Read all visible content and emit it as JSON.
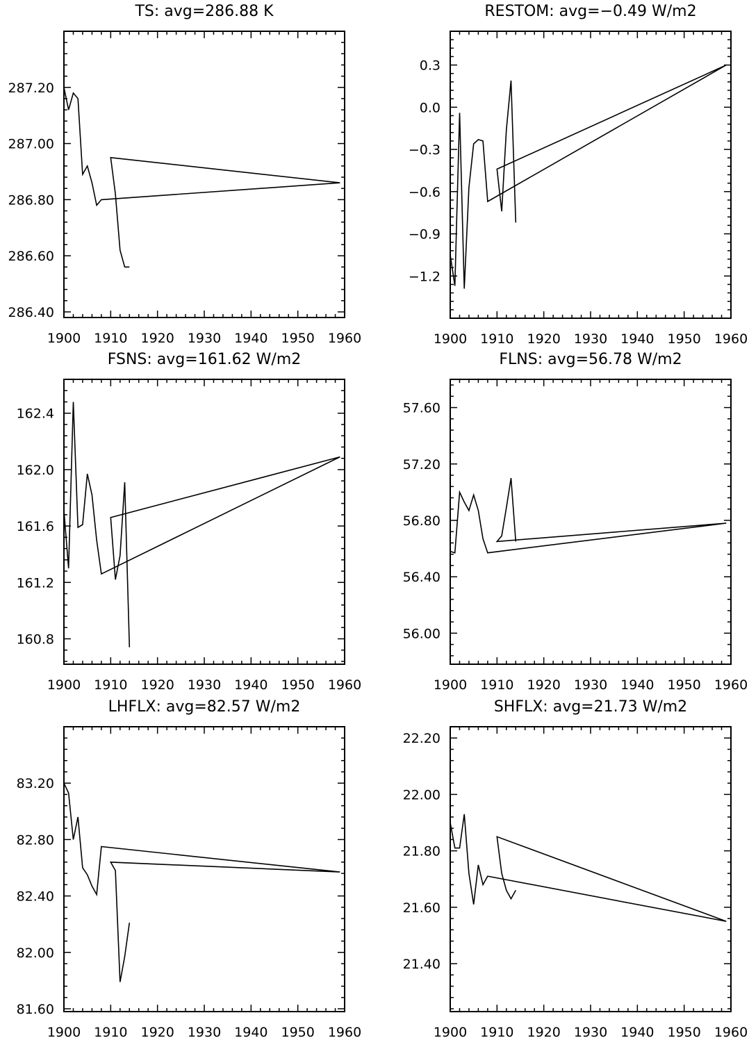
{
  "chart_data": [
    {
      "type": "line",
      "title": "TS: avg=286.88 K",
      "xlabel": "",
      "ylabel": "",
      "xlim": [
        1900,
        1960
      ],
      "ylim": [
        286.38,
        287.4
      ],
      "grid": false,
      "x_ticks": [
        1900,
        1910,
        1920,
        1930,
        1940,
        1950,
        1960
      ],
      "x_tick_labels": [
        "1900",
        "1910",
        "1920",
        "1930",
        "1940",
        "1950",
        "1960"
      ],
      "y_ticks": [
        286.4,
        286.6,
        286.8,
        287.0,
        287.2
      ],
      "y_tick_labels": [
        "286.40",
        "286.60",
        "286.80",
        "287.00",
        "287.20"
      ],
      "series": [
        {
          "name": "TS",
          "x": [
            1900,
            1901,
            1902,
            1903,
            1904,
            1905,
            1906,
            1907,
            1908,
            1959,
            1910,
            1911,
            1912,
            1913,
            1914
          ],
          "y": [
            287.2,
            287.12,
            287.18,
            287.16,
            286.89,
            286.92,
            286.86,
            286.78,
            286.8,
            286.86,
            286.95,
            286.82,
            286.62,
            286.56,
            286.56
          ]
        }
      ]
    },
    {
      "type": "line",
      "title": "RESTOM: avg=−0.49 W/m2",
      "xlabel": "",
      "ylabel": "",
      "xlim": [
        1900,
        1960
      ],
      "ylim": [
        -1.5,
        0.54
      ],
      "grid": false,
      "x_ticks": [
        1900,
        1910,
        1920,
        1930,
        1940,
        1950,
        1960
      ],
      "x_tick_labels": [
        "1900",
        "1910",
        "1920",
        "1930",
        "1940",
        "1950",
        "1960"
      ],
      "y_ticks": [
        -1.2,
        -0.9,
        -0.6,
        -0.3,
        0.0,
        0.3
      ],
      "y_tick_labels": [
        "−1.2",
        "−0.9",
        "−0.6",
        "−0.3",
        "0.0",
        "0.3"
      ],
      "series": [
        {
          "name": "RESTOM",
          "x": [
            1900,
            1901,
            1902,
            1903,
            1904,
            1905,
            1906,
            1907,
            1908,
            1959,
            1910,
            1911,
            1912,
            1913,
            1914
          ],
          "y": [
            -1.05,
            -1.27,
            -0.04,
            -1.29,
            -0.57,
            -0.26,
            -0.23,
            -0.24,
            -0.67,
            0.3,
            -0.44,
            -0.74,
            -0.16,
            0.19,
            -0.82
          ]
        }
      ]
    },
    {
      "type": "line",
      "title": "FSNS: avg=161.62 W/m2",
      "xlabel": "",
      "ylabel": "",
      "xlim": [
        1900,
        1960
      ],
      "ylim": [
        160.62,
        162.64
      ],
      "grid": false,
      "x_ticks": [
        1900,
        1910,
        1920,
        1930,
        1940,
        1950,
        1960
      ],
      "x_tick_labels": [
        "1900",
        "1910",
        "1920",
        "1930",
        "1940",
        "1950",
        "1960"
      ],
      "y_ticks": [
        160.8,
        161.2,
        161.6,
        162.0,
        162.4
      ],
      "y_tick_labels": [
        "160.8",
        "161.2",
        "161.6",
        "162.0",
        "162.4"
      ],
      "series": [
        {
          "name": "FSNS",
          "x": [
            1900,
            1901,
            1902,
            1903,
            1904,
            1905,
            1906,
            1907,
            1908,
            1959,
            1910,
            1911,
            1912,
            1913,
            1914
          ],
          "y": [
            161.71,
            161.3,
            162.48,
            161.59,
            161.61,
            161.97,
            161.82,
            161.5,
            161.26,
            162.09,
            161.66,
            161.22,
            161.39,
            161.91,
            160.74
          ]
        }
      ]
    },
    {
      "type": "line",
      "title": "FLNS: avg=56.78 W/m2",
      "xlabel": "",
      "ylabel": "",
      "xlim": [
        1900,
        1960
      ],
      "ylim": [
        55.78,
        57.8
      ],
      "grid": false,
      "x_ticks": [
        1900,
        1910,
        1920,
        1930,
        1940,
        1950,
        1960
      ],
      "x_tick_labels": [
        "1900",
        "1910",
        "1920",
        "1930",
        "1940",
        "1950",
        "1960"
      ],
      "y_ticks": [
        56.0,
        56.4,
        56.8,
        57.2,
        57.6
      ],
      "y_tick_labels": [
        "56.00",
        "56.40",
        "56.80",
        "57.20",
        "57.60"
      ],
      "series": [
        {
          "name": "FLNS",
          "x": [
            1900,
            1901,
            1902,
            1903,
            1904,
            1905,
            1906,
            1907,
            1908,
            1959,
            1910,
            1911,
            1912,
            1913,
            1914
          ],
          "y": [
            56.58,
            56.57,
            57.0,
            56.93,
            56.87,
            56.98,
            56.87,
            56.67,
            56.57,
            56.78,
            56.65,
            56.69,
            56.89,
            57.1,
            56.65
          ]
        }
      ]
    },
    {
      "type": "line",
      "title": "LHFLX: avg=82.57 W/m2",
      "xlabel": "",
      "ylabel": "",
      "xlim": [
        1900,
        1960
      ],
      "ylim": [
        81.58,
        83.6
      ],
      "grid": false,
      "x_ticks": [
        1900,
        1910,
        1920,
        1930,
        1940,
        1950,
        1960
      ],
      "x_tick_labels": [
        "1900",
        "1910",
        "1920",
        "1930",
        "1940",
        "1950",
        "1960"
      ],
      "y_ticks": [
        81.6,
        82.0,
        82.4,
        82.8,
        83.2
      ],
      "y_tick_labels": [
        "81.60",
        "82.00",
        "82.40",
        "82.80",
        "83.20"
      ],
      "series": [
        {
          "name": "LHFLX",
          "x": [
            1900,
            1901,
            1902,
            1903,
            1904,
            1905,
            1906,
            1907,
            1908,
            1959,
            1910,
            1911,
            1912,
            1913,
            1914
          ],
          "y": [
            83.2,
            83.13,
            82.8,
            82.96,
            82.6,
            82.55,
            82.47,
            82.41,
            82.75,
            82.57,
            82.64,
            82.58,
            81.79,
            81.97,
            82.21
          ]
        }
      ]
    },
    {
      "type": "line",
      "title": "SHFLX: avg=21.73 W/m2",
      "xlabel": "",
      "ylabel": "",
      "xlim": [
        1900,
        1960
      ],
      "ylim": [
        21.23,
        22.24
      ],
      "grid": false,
      "x_ticks": [
        1900,
        1910,
        1920,
        1930,
        1940,
        1950,
        1960
      ],
      "x_tick_labels": [
        "1900",
        "1910",
        "1920",
        "1930",
        "1940",
        "1950",
        "1960"
      ],
      "y_ticks": [
        21.4,
        21.6,
        21.8,
        22.0,
        22.2
      ],
      "y_tick_labels": [
        "21.40",
        "21.60",
        "21.80",
        "22.00",
        "22.20"
      ],
      "series": [
        {
          "name": "SHFLX",
          "x": [
            1900,
            1901,
            1902,
            1903,
            1904,
            1905,
            1906,
            1907,
            1908,
            1959,
            1910,
            1911,
            1912,
            1913,
            1914
          ],
          "y": [
            21.9,
            21.81,
            21.81,
            21.93,
            21.72,
            21.61,
            21.75,
            21.68,
            21.71,
            21.55,
            21.85,
            21.72,
            21.66,
            21.63,
            21.66
          ]
        }
      ]
    }
  ]
}
